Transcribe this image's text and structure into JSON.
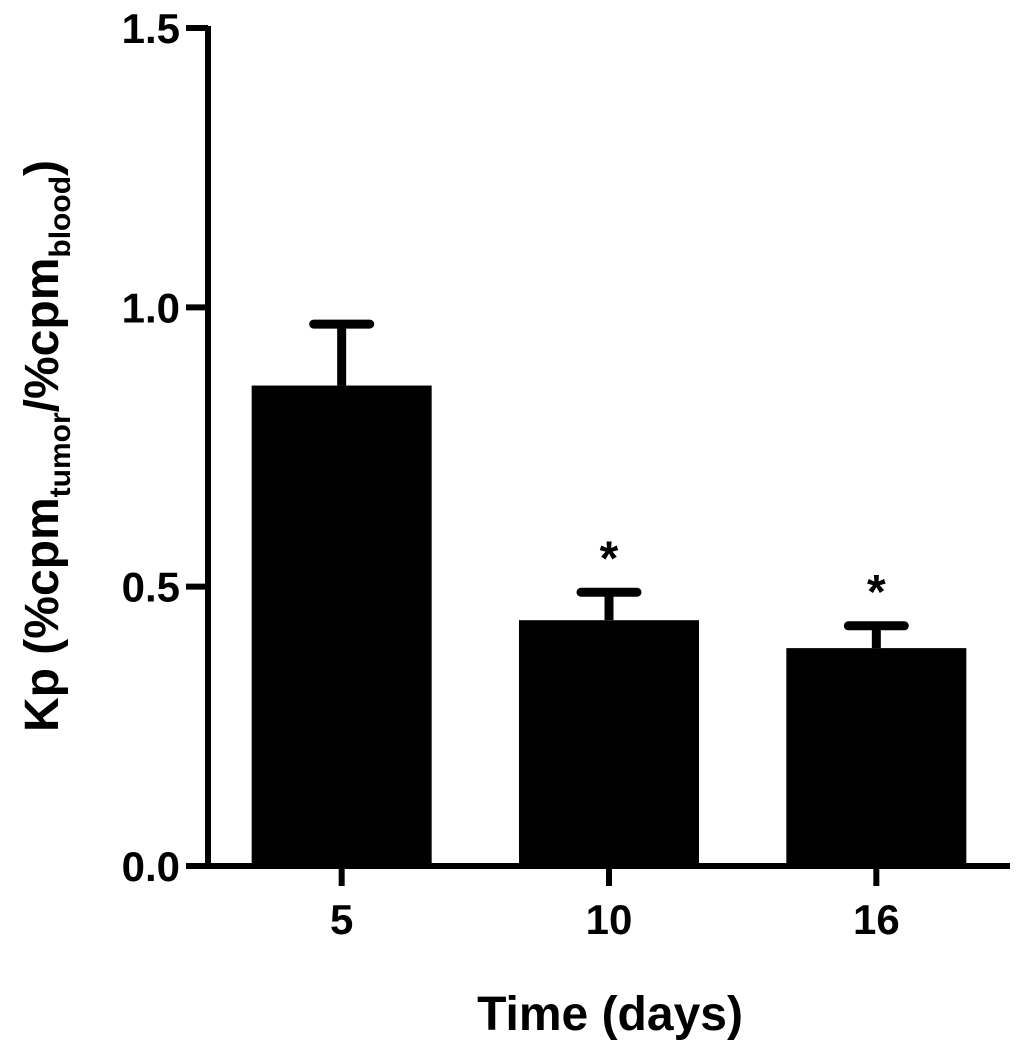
{
  "chart_data": {
    "type": "bar",
    "categories": [
      "5",
      "10",
      "16"
    ],
    "values": [
      0.86,
      0.44,
      0.39
    ],
    "error_upper": [
      0.97,
      0.49,
      0.43
    ],
    "significance": [
      "",
      "*",
      "*"
    ],
    "ylim": [
      0,
      1.5
    ],
    "y_ticks": [
      "0.0",
      "0.5",
      "1.0",
      "1.5"
    ],
    "y_tick_values": [
      0,
      0.5,
      1.0,
      1.5
    ],
    "xlabel": "Time (days)",
    "ylabel": {
      "prefix": "Kp (%cpm",
      "sub1": "tumor",
      "middle": "/%cpm",
      "sub2": "blood",
      "suffix": ")"
    },
    "bar_color": "#000000",
    "grid": false,
    "legend": "none"
  }
}
